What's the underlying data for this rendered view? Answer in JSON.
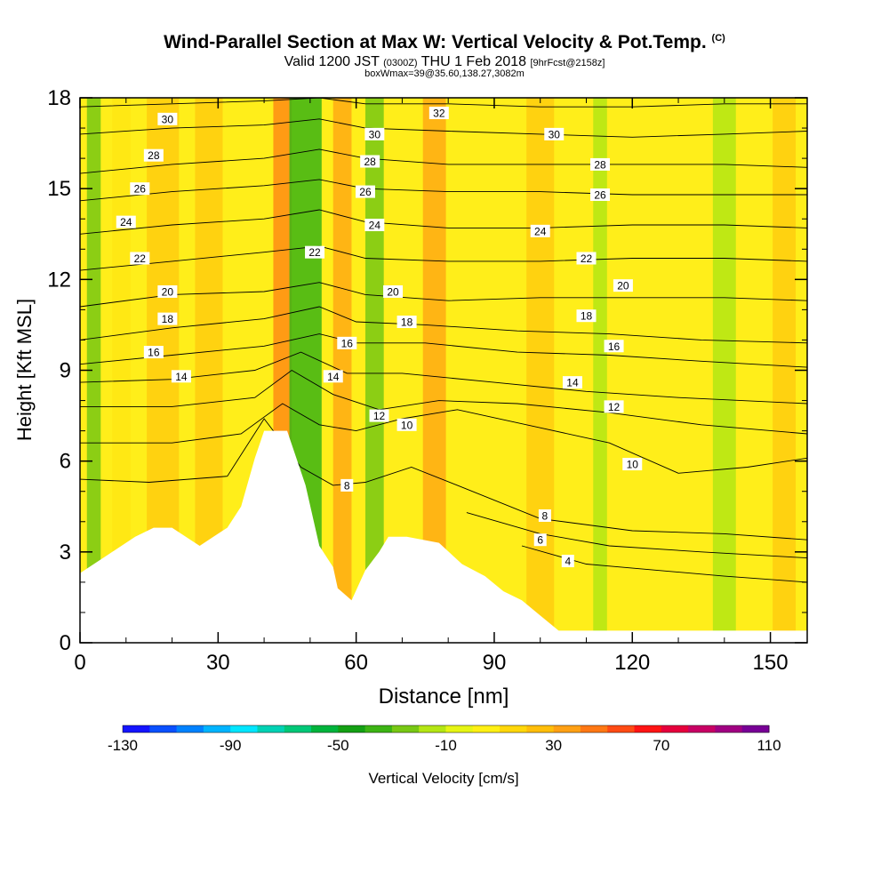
{
  "header": {
    "title": "Wind-Parallel Section at Max W: Vertical Velocity & Pot.Temp.",
    "title_mark": "(C)",
    "valid_prefix": "Valid 1200 JST",
    "valid_utc": "(0300Z)",
    "valid_date": "THU 1 Feb 2018",
    "forecast_info": "[9hrFcst@2158z]",
    "box_info": "boxWmax=39@35.60,138.27,3082m"
  },
  "chart_data": {
    "type": "heatmap",
    "xlabel": "Distance [nm]",
    "ylabel": "Height [Kft MSL]",
    "xlim": [
      0,
      158
    ],
    "ylim": [
      0,
      18
    ],
    "x_ticks": [
      "0",
      "30",
      "60",
      "90",
      "120",
      "150"
    ],
    "x_tick_values": [
      0,
      30,
      60,
      90,
      120,
      150
    ],
    "y_ticks": [
      "0",
      "3",
      "6",
      "9",
      "12",
      "15",
      "18"
    ],
    "y_tick_values": [
      0,
      3,
      6,
      9,
      12,
      15,
      18
    ],
    "terrain": [
      [
        0,
        2.3
      ],
      [
        3,
        2.6
      ],
      [
        6,
        2.9
      ],
      [
        9,
        3.2
      ],
      [
        12,
        3.5
      ],
      [
        16,
        3.8
      ],
      [
        20,
        3.8
      ],
      [
        26,
        3.2
      ],
      [
        29,
        3.5
      ],
      [
        32,
        3.8
      ],
      [
        35,
        4.5
      ],
      [
        38,
        6.1
      ],
      [
        40,
        7.0
      ],
      [
        45,
        7.0
      ],
      [
        49,
        5.2
      ],
      [
        52,
        3.2
      ],
      [
        55,
        2.5
      ],
      [
        56,
        1.8
      ],
      [
        59,
        1.4
      ],
      [
        62,
        2.4
      ],
      [
        65,
        3.0
      ],
      [
        67,
        3.5
      ],
      [
        71,
        3.5
      ],
      [
        78,
        3.3
      ],
      [
        83,
        2.6
      ],
      [
        88,
        2.2
      ],
      [
        92,
        1.7
      ],
      [
        96,
        1.4
      ],
      [
        100,
        0.9
      ],
      [
        104,
        0.4
      ],
      [
        112,
        0.4
      ],
      [
        125,
        0.4
      ],
      [
        140,
        0.4
      ],
      [
        158,
        0.4
      ]
    ],
    "theta_contours": [
      {
        "label": "4",
        "points": [
          [
            96,
            3.2
          ],
          [
            110,
            2.6
          ],
          [
            125,
            2.4
          ],
          [
            140,
            2.2
          ],
          [
            158,
            2.0
          ]
        ]
      },
      {
        "label": "6",
        "points": [
          [
            84,
            4.3
          ],
          [
            100,
            3.6
          ],
          [
            115,
            3.2
          ],
          [
            135,
            3.0
          ],
          [
            158,
            2.8
          ]
        ]
      },
      {
        "label": "8",
        "points": [
          [
            0,
            5.4
          ],
          [
            15,
            5.3
          ],
          [
            32,
            5.5
          ],
          [
            40,
            7.4
          ],
          [
            48,
            5.8
          ],
          [
            55,
            5.2
          ],
          [
            62,
            5.3
          ],
          [
            72,
            5.8
          ],
          [
            82,
            5.2
          ],
          [
            100,
            4.1
          ],
          [
            120,
            3.7
          ],
          [
            140,
            3.6
          ],
          [
            158,
            3.4
          ]
        ]
      },
      {
        "label": "10",
        "points": [
          [
            0,
            6.6
          ],
          [
            20,
            6.6
          ],
          [
            35,
            6.9
          ],
          [
            44,
            7.9
          ],
          [
            52,
            7.2
          ],
          [
            60,
            7.0
          ],
          [
            70,
            7.4
          ],
          [
            82,
            7.7
          ],
          [
            100,
            7.1
          ],
          [
            115,
            6.6
          ],
          [
            130,
            5.6
          ],
          [
            145,
            5.8
          ],
          [
            158,
            6.1
          ]
        ]
      },
      {
        "label": "12",
        "points": [
          [
            0,
            7.8
          ],
          [
            20,
            7.8
          ],
          [
            38,
            8.1
          ],
          [
            46,
            9.0
          ],
          [
            55,
            8.2
          ],
          [
            65,
            7.7
          ],
          [
            78,
            8.0
          ],
          [
            95,
            7.9
          ],
          [
            115,
            7.6
          ],
          [
            135,
            7.2
          ],
          [
            158,
            6.9
          ]
        ]
      },
      {
        "label": "14",
        "points": [
          [
            0,
            8.6
          ],
          [
            20,
            8.7
          ],
          [
            38,
            9.0
          ],
          [
            48,
            9.6
          ],
          [
            58,
            8.9
          ],
          [
            70,
            8.9
          ],
          [
            90,
            8.6
          ],
          [
            110,
            8.3
          ],
          [
            130,
            8.1
          ],
          [
            158,
            7.9
          ]
        ]
      },
      {
        "label": "16",
        "points": [
          [
            0,
            9.2
          ],
          [
            20,
            9.5
          ],
          [
            40,
            9.8
          ],
          [
            52,
            10.2
          ],
          [
            60,
            9.9
          ],
          [
            75,
            9.9
          ],
          [
            95,
            9.6
          ],
          [
            115,
            9.5
          ],
          [
            135,
            9.3
          ],
          [
            158,
            9.1
          ]
        ]
      },
      {
        "label": "18",
        "points": [
          [
            0,
            10.0
          ],
          [
            20,
            10.4
          ],
          [
            40,
            10.7
          ],
          [
            52,
            11.1
          ],
          [
            60,
            10.6
          ],
          [
            75,
            10.5
          ],
          [
            95,
            10.3
          ],
          [
            115,
            10.2
          ],
          [
            135,
            10.0
          ],
          [
            158,
            9.9
          ]
        ]
      },
      {
        "label": "20",
        "points": [
          [
            0,
            11.1
          ],
          [
            20,
            11.5
          ],
          [
            40,
            11.6
          ],
          [
            52,
            11.9
          ],
          [
            62,
            11.5
          ],
          [
            80,
            11.3
          ],
          [
            100,
            11.4
          ],
          [
            120,
            11.4
          ],
          [
            140,
            11.4
          ],
          [
            158,
            11.3
          ]
        ]
      },
      {
        "label": "22",
        "points": [
          [
            0,
            12.3
          ],
          [
            20,
            12.6
          ],
          [
            40,
            12.9
          ],
          [
            52,
            13.1
          ],
          [
            62,
            12.7
          ],
          [
            80,
            12.6
          ],
          [
            100,
            12.6
          ],
          [
            120,
            12.7
          ],
          [
            140,
            12.7
          ],
          [
            158,
            12.6
          ]
        ]
      },
      {
        "label": "24",
        "points": [
          [
            0,
            13.5
          ],
          [
            20,
            13.8
          ],
          [
            40,
            14.0
          ],
          [
            52,
            14.3
          ],
          [
            62,
            13.9
          ],
          [
            80,
            13.7
          ],
          [
            100,
            13.7
          ],
          [
            120,
            13.8
          ],
          [
            140,
            13.8
          ],
          [
            158,
            13.7
          ]
        ]
      },
      {
        "label": "26",
        "points": [
          [
            0,
            14.6
          ],
          [
            20,
            14.9
          ],
          [
            40,
            15.1
          ],
          [
            52,
            15.3
          ],
          [
            62,
            15.0
          ],
          [
            80,
            14.9
          ],
          [
            100,
            14.9
          ],
          [
            120,
            14.8
          ],
          [
            140,
            14.8
          ],
          [
            158,
            14.8
          ]
        ]
      },
      {
        "label": "28",
        "points": [
          [
            0,
            15.5
          ],
          [
            20,
            15.8
          ],
          [
            40,
            16.0
          ],
          [
            52,
            16.3
          ],
          [
            62,
            16.0
          ],
          [
            80,
            15.8
          ],
          [
            100,
            15.8
          ],
          [
            120,
            15.8
          ],
          [
            140,
            15.8
          ],
          [
            158,
            15.7
          ]
        ]
      },
      {
        "label": "30",
        "points": [
          [
            0,
            16.8
          ],
          [
            20,
            17.0
          ],
          [
            40,
            17.1
          ],
          [
            52,
            17.3
          ],
          [
            62,
            17.0
          ],
          [
            80,
            16.9
          ],
          [
            100,
            16.8
          ],
          [
            120,
            16.7
          ],
          [
            140,
            16.8
          ],
          [
            158,
            16.9
          ]
        ]
      },
      {
        "label": "32",
        "points": [
          [
            0,
            17.7
          ],
          [
            20,
            17.8
          ],
          [
            40,
            17.9
          ],
          [
            52,
            18.0
          ],
          [
            62,
            17.8
          ],
          [
            80,
            17.8
          ],
          [
            100,
            17.7
          ],
          [
            120,
            17.7
          ],
          [
            140,
            17.8
          ],
          [
            158,
            17.8
          ]
        ]
      }
    ],
    "contour_labels": [
      {
        "text": "30",
        "x": 19,
        "y": 17.3
      },
      {
        "text": "28",
        "x": 16,
        "y": 16.1
      },
      {
        "text": "26",
        "x": 13,
        "y": 15.0
      },
      {
        "text": "24",
        "x": 10,
        "y": 13.9
      },
      {
        "text": "22",
        "x": 13,
        "y": 12.7
      },
      {
        "text": "20",
        "x": 19,
        "y": 11.6
      },
      {
        "text": "18",
        "x": 19,
        "y": 10.7
      },
      {
        "text": "16",
        "x": 16,
        "y": 9.6
      },
      {
        "text": "14",
        "x": 22,
        "y": 8.8
      },
      {
        "text": "32",
        "x": 78,
        "y": 17.5
      },
      {
        "text": "30",
        "x": 64,
        "y": 16.8
      },
      {
        "text": "28",
        "x": 63,
        "y": 15.9
      },
      {
        "text": "26",
        "x": 62,
        "y": 14.9
      },
      {
        "text": "24",
        "x": 64,
        "y": 13.8
      },
      {
        "text": "22",
        "x": 51,
        "y": 12.9
      },
      {
        "text": "20",
        "x": 68,
        "y": 11.6
      },
      {
        "text": "18",
        "x": 71,
        "y": 10.6
      },
      {
        "text": "16",
        "x": 58,
        "y": 9.9
      },
      {
        "text": "14",
        "x": 55,
        "y": 8.8
      },
      {
        "text": "12",
        "x": 65,
        "y": 7.5
      },
      {
        "text": "10",
        "x": 71,
        "y": 7.2
      },
      {
        "text": "8",
        "x": 58,
        "y": 5.2
      },
      {
        "text": "30",
        "x": 103,
        "y": 16.8
      },
      {
        "text": "28",
        "x": 113,
        "y": 15.8
      },
      {
        "text": "26",
        "x": 113,
        "y": 14.8
      },
      {
        "text": "24",
        "x": 100,
        "y": 13.6
      },
      {
        "text": "22",
        "x": 110,
        "y": 12.7
      },
      {
        "text": "20",
        "x": 118,
        "y": 11.8
      },
      {
        "text": "18",
        "x": 110,
        "y": 10.8
      },
      {
        "text": "16",
        "x": 116,
        "y": 9.8
      },
      {
        "text": "14",
        "x": 107,
        "y": 8.6
      },
      {
        "text": "12",
        "x": 116,
        "y": 7.8
      },
      {
        "text": "10",
        "x": 120,
        "y": 5.9
      },
      {
        "text": "8",
        "x": 101,
        "y": 4.2
      },
      {
        "text": "6",
        "x": 100,
        "y": 3.4
      },
      {
        "text": "4",
        "x": 106,
        "y": 2.7
      }
    ],
    "velocity_bands": [
      {
        "x": 3,
        "width": 3,
        "value": -20
      },
      {
        "x": 9,
        "width": 4,
        "value": 10
      },
      {
        "x": 18,
        "width": 7,
        "value": 20
      },
      {
        "x": 28,
        "width": 6,
        "value": 15
      },
      {
        "x": 44,
        "width": 4,
        "value": 40
      },
      {
        "x": 49,
        "width": 7,
        "value": -40
      },
      {
        "x": 57,
        "width": 4,
        "value": 30
      },
      {
        "x": 64,
        "width": 4,
        "value": -25
      },
      {
        "x": 77,
        "width": 5,
        "value": 30
      },
      {
        "x": 100,
        "width": 6,
        "value": 15
      },
      {
        "x": 113,
        "width": 3,
        "value": -15
      },
      {
        "x": 140,
        "width": 5,
        "value": -12
      },
      {
        "x": 153,
        "width": 5,
        "value": 20
      }
    ],
    "colorbar": {
      "label": "Vertical Velocity [cm/s]",
      "tick_labels": [
        "-130",
        "-90",
        "-50",
        "-10",
        "30",
        "70",
        "110"
      ],
      "colors": [
        "#1414ff",
        "#0a50ff",
        "#0082ff",
        "#00b4ff",
        "#00e6ff",
        "#00d2b4",
        "#00c878",
        "#00b43c",
        "#14a014",
        "#3cb414",
        "#78c814",
        "#b4e614",
        "#e6f514",
        "#fff014",
        "#ffd70a",
        "#ffbe0a",
        "#ffa014",
        "#ff7814",
        "#ff4b14",
        "#ff1414",
        "#e6003c",
        "#c80064",
        "#a00082",
        "#780096"
      ]
    }
  }
}
